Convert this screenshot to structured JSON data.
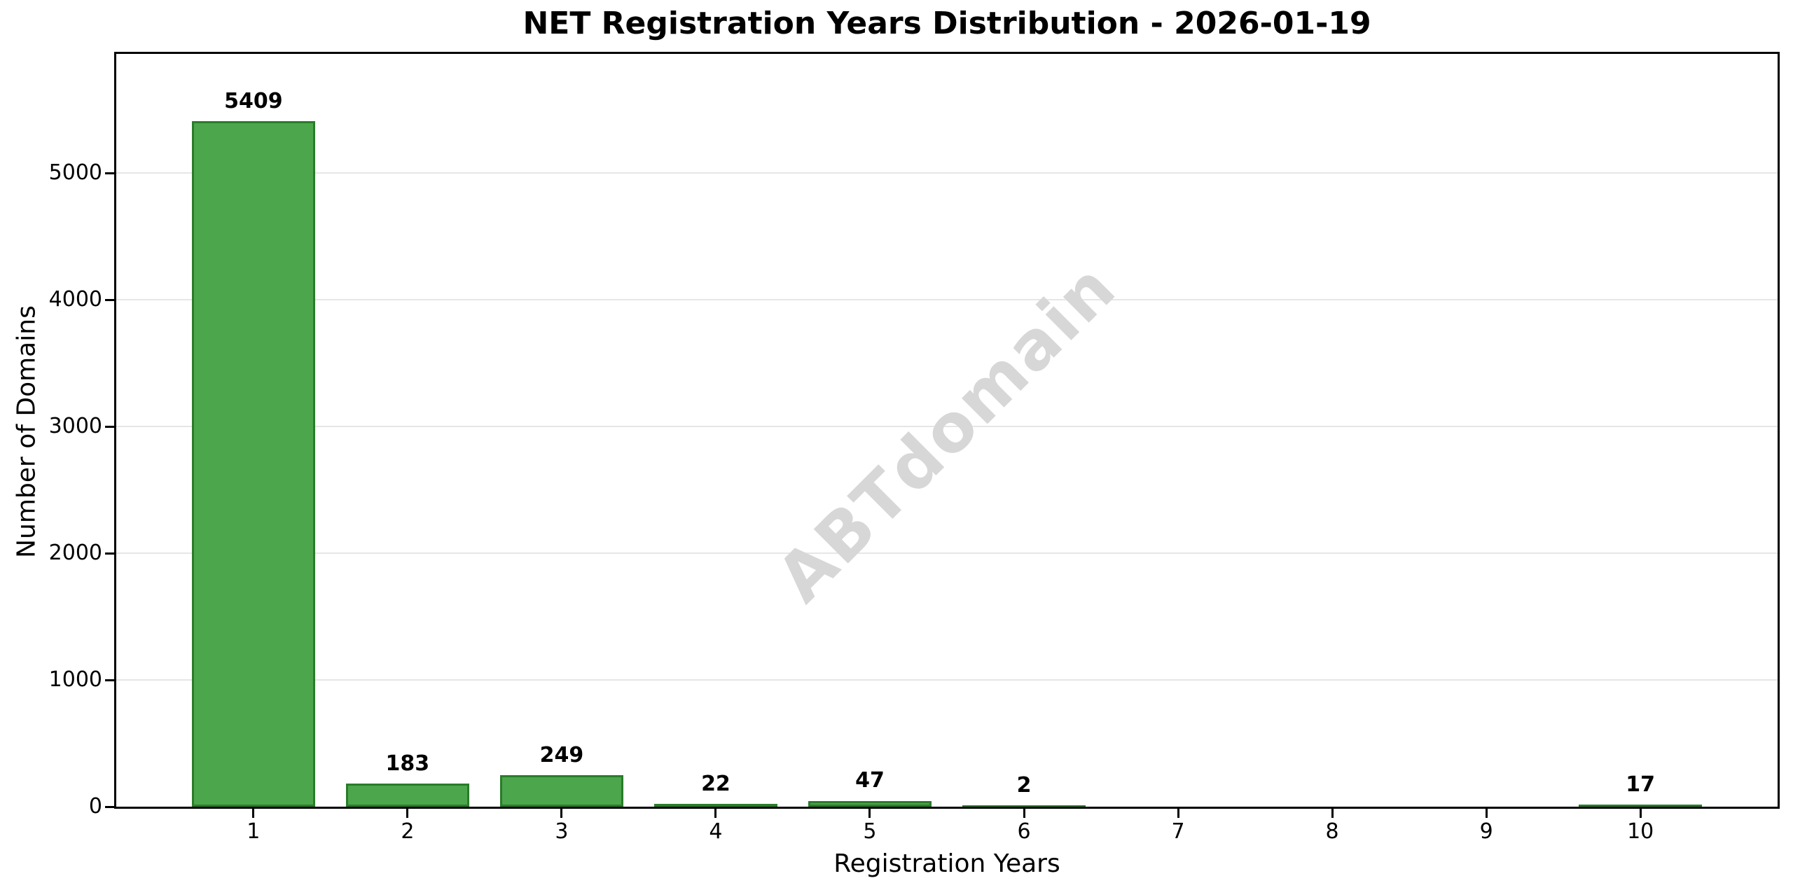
{
  "figure": {
    "background": "#ffffff"
  },
  "chart_data": {
    "type": "bar",
    "title": "NET Registration Years Distribution - 2026-01-19",
    "xlabel": "Registration Years",
    "ylabel": "Number of Domains",
    "categories": [
      1,
      2,
      3,
      4,
      5,
      6,
      7,
      8,
      9,
      10
    ],
    "values": [
      5409,
      183,
      249,
      22,
      47,
      2,
      0,
      0,
      0,
      17
    ],
    "bar_labels": [
      "5409",
      "183",
      "249",
      "22",
      "47",
      "2",
      "",
      "",
      "",
      "17"
    ],
    "xlim": [
      0.11,
      10.89
    ],
    "ylim": [
      0,
      5940
    ],
    "yticks": [
      0,
      1000,
      2000,
      3000,
      4000,
      5000
    ],
    "bar_width_units": 0.8,
    "grid": "horizontal-light",
    "legend": "none",
    "watermark": {
      "text": "ABTdomain",
      "rotation_deg": -45
    },
    "colors": {
      "bar_fill": "#4ca64c",
      "bar_edge": "#2a7c2a",
      "grid": "#e6e6e6",
      "watermark": "#d7d7d7",
      "text": "#000000",
      "background": "#ffffff",
      "spine": "#000000"
    }
  }
}
